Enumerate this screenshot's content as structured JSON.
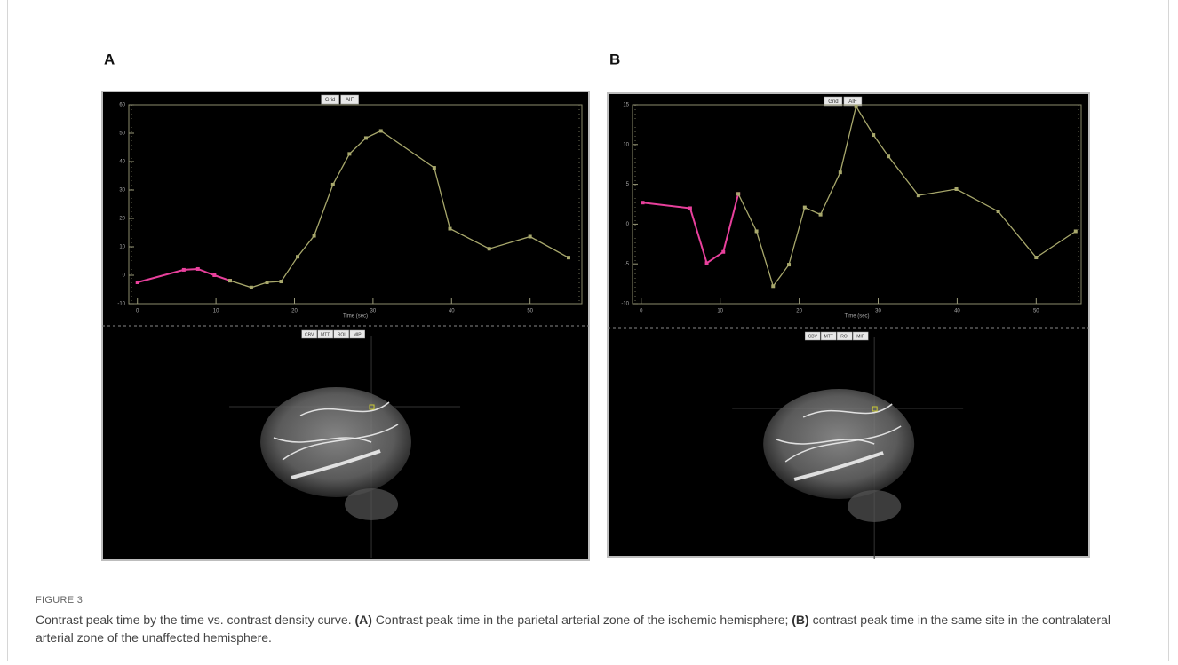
{
  "panels": [
    {
      "label": "A",
      "buttons_top": [
        "Grid",
        "AIF"
      ],
      "buttons_bottom": [
        "CBV",
        "MTT",
        "ROI",
        "MIP"
      ],
      "chart": {
        "type": "line",
        "x_label": "Time (sec)",
        "xlim": [
          -1.1,
          56.6
        ],
        "ylim": [
          -10,
          60
        ],
        "xticks": [
          0,
          10,
          20,
          30,
          40,
          50
        ],
        "yticks": [
          -10,
          0,
          10,
          20,
          30,
          40,
          50,
          60
        ],
        "series": [
          {
            "color": "#e8409c",
            "x": [
              0,
              5.9,
              7.7,
              9.8,
              11.8
            ],
            "values": [
              -2.5,
              1.9,
              2.2,
              0,
              -1.9
            ]
          },
          {
            "color": "#a8a86c",
            "x": [
              11.8,
              14.5,
              16.5,
              18.3,
              20.4,
              22.5,
              24.9,
              27.0,
              29.1,
              31.0,
              37.8,
              39.8,
              44.8,
              50.0,
              54.9
            ],
            "values": [
              -1.9,
              -4.3,
              -2.5,
              -2.2,
              6.5,
              13.9,
              31.9,
              42.7,
              48.3,
              50.8,
              37.8,
              16.4,
              9.3,
              13.6,
              6.2
            ]
          }
        ]
      }
    },
    {
      "label": "B",
      "buttons_top": [
        "Grid",
        "AIF"
      ],
      "buttons_bottom": [
        "CBV",
        "MTT",
        "ROI",
        "MIP"
      ],
      "chart": {
        "type": "line",
        "x_label": "Time (sec)",
        "xlim": [
          -1.1,
          55.7
        ],
        "ylim": [
          -10,
          15
        ],
        "xticks": [
          0,
          10,
          20,
          30,
          40,
          50
        ],
        "yticks": [
          -10,
          -5,
          0,
          5,
          10,
          15
        ],
        "series": [
          {
            "color": "#e8409c",
            "x": [
              0.2,
              6.2,
              8.3,
              10.4,
              12.3
            ],
            "values": [
              2.7,
              2.0,
              -4.9,
              -3.5,
              3.8
            ]
          },
          {
            "color": "#a8a86c",
            "x": [
              12.3,
              14.6,
              16.7,
              18.7,
              20.7,
              22.7,
              25.2,
              27.2,
              29.4,
              31.3,
              35.1,
              39.9,
              45.2,
              50.0,
              55.0
            ],
            "values": [
              3.8,
              -0.9,
              -7.8,
              -5.1,
              2.1,
              1.2,
              6.5,
              14.8,
              11.2,
              8.5,
              3.6,
              4.4,
              1.6,
              -4.2,
              -0.9
            ]
          }
        ]
      }
    }
  ],
  "figure": {
    "label": "FIGURE 3",
    "caption": [
      "Contrast peak time by the time vs. contrast density curve. ",
      "(A)",
      " Contrast peak time in the parietal arterial zone of the ischemic hemisphere; ",
      "(B)",
      " contrast peak time in the same site in the contralateral arterial zone of the unaffected hemisphere."
    ]
  }
}
